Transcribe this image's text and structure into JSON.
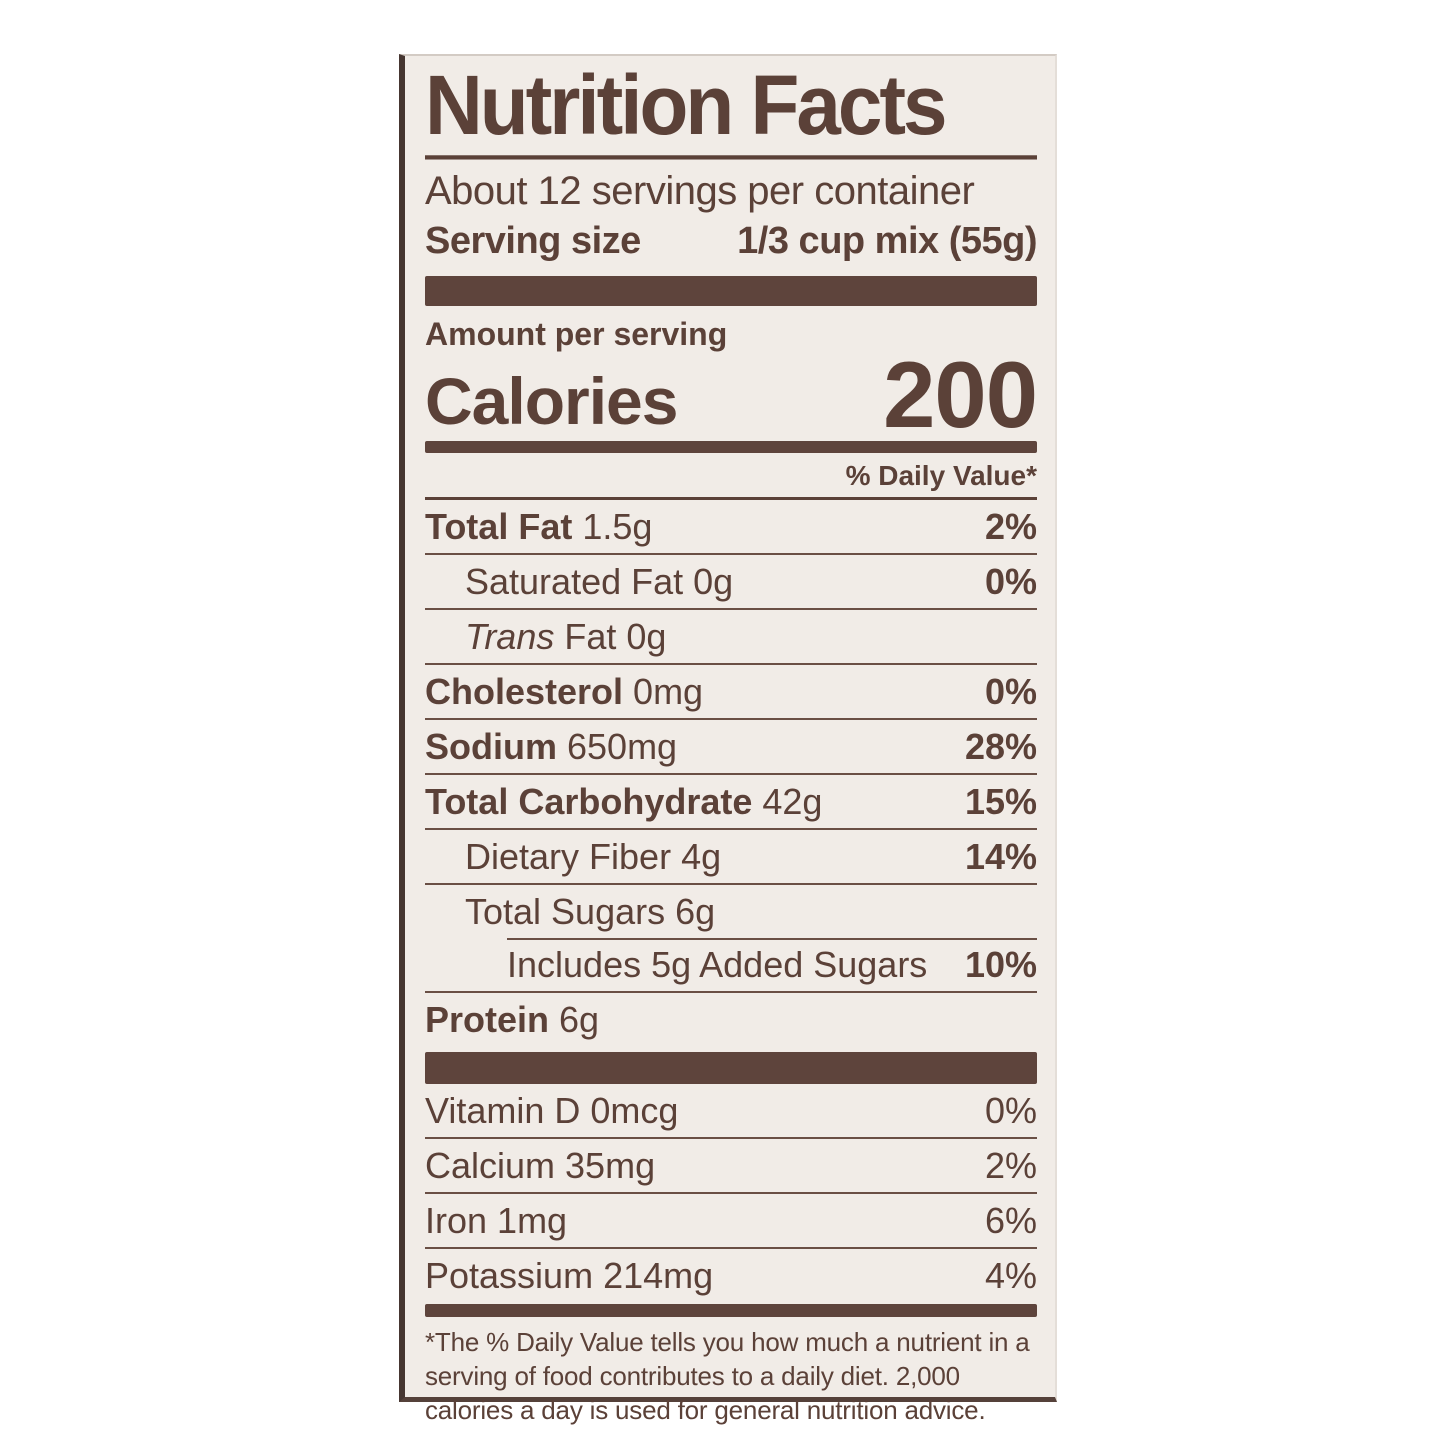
{
  "colors": {
    "text_brown": "#5b4138",
    "bar_brown": "#5e443c",
    "label_background": "#f1ece7",
    "page_background": "#ffffff"
  },
  "label": {
    "title": "Nutrition Facts",
    "servings_per_container": "About 12 servings per container",
    "serving_size_label": "Serving size",
    "serving_size_value": "1/3 cup mix (55g)",
    "amount_per_serving": "Amount per serving",
    "calories_label": "Calories",
    "calories_value": "200",
    "daily_value_header": "% Daily Value*",
    "nutrients": [
      {
        "name": "Total Fat",
        "amount": "1.5g",
        "dv": "2%",
        "bold": true,
        "indent": 0
      },
      {
        "name": "Saturated Fat",
        "amount": "0g",
        "dv": "0%",
        "bold": false,
        "indent": 1
      },
      {
        "prefix_italic": "Trans",
        "name": "Fat",
        "amount": "0g",
        "dv": "",
        "bold": false,
        "indent": 1
      },
      {
        "name": "Cholesterol",
        "amount": "0mg",
        "dv": "0%",
        "bold": true,
        "indent": 0
      },
      {
        "name": "Sodium",
        "amount": "650mg",
        "dv": "28%",
        "bold": true,
        "indent": 0
      },
      {
        "name": "Total Carbohydrate",
        "amount": "42g",
        "dv": "15%",
        "bold": true,
        "indent": 0
      },
      {
        "name": "Dietary Fiber",
        "amount": "4g",
        "dv": "14%",
        "bold": false,
        "indent": 1
      },
      {
        "name": "Total Sugars",
        "amount": "6g",
        "dv": "",
        "bold": false,
        "indent": 1
      },
      {
        "name": "Includes 5g Added Sugars",
        "amount": "",
        "dv": "10%",
        "bold": false,
        "indent": 2,
        "rule_indented": true
      },
      {
        "name": "Protein",
        "amount": "6g",
        "dv": "",
        "bold": true,
        "indent": 0
      }
    ],
    "vitamins": [
      {
        "name": "Vitamin D",
        "amount": "0mcg",
        "dv": "0%"
      },
      {
        "name": "Calcium",
        "amount": "35mg",
        "dv": "2%"
      },
      {
        "name": "Iron",
        "amount": "1mg",
        "dv": "6%"
      },
      {
        "name": "Potassium",
        "amount": "214mg",
        "dv": "4%"
      }
    ],
    "footnote": "*The % Daily Value tells you how much a nutrient in a serving of food contributes to a daily diet. 2,000 calories a day is used for general nutrition advice."
  }
}
